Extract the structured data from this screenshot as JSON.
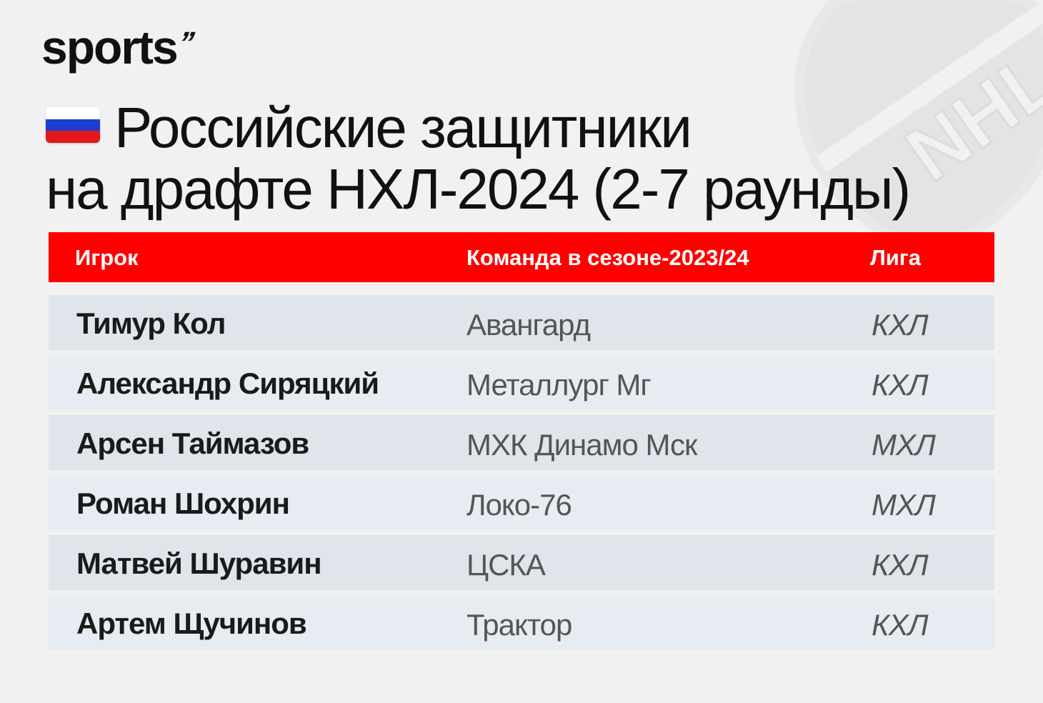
{
  "brand": {
    "logo_text": "sports",
    "logo_mark": "’’",
    "watermark": "NHL"
  },
  "title": {
    "line1": "Российские защитники",
    "line2": "на драфте НХЛ-2024 (2-7 раунды)",
    "flag_icon": "russia-flag-icon"
  },
  "colors": {
    "header_bg": "#ff0000",
    "row_odd": "#dfe5ea",
    "row_even": "#e6ecf1",
    "background": "#f1f1f1"
  },
  "table": {
    "headers": [
      "Игрок",
      "Команда в сезоне-2023/24",
      "Лига"
    ],
    "rows": [
      {
        "player": "Тимур Кол",
        "team": "Авангард",
        "league": "КХЛ"
      },
      {
        "player": "Александр Сиряцкий",
        "team": "Металлург Мг",
        "league": "КХЛ"
      },
      {
        "player": "Арсен Таймазов",
        "team": "МХК Динамо Мск",
        "league": "МХЛ"
      },
      {
        "player": "Роман Шохрин",
        "team": "Локо-76",
        "league": "МХЛ"
      },
      {
        "player": "Матвей Шуравин",
        "team": "ЦСКА",
        "league": "КХЛ"
      },
      {
        "player": "Артем Щучинов",
        "team": "Трактор",
        "league": "КХЛ"
      }
    ]
  }
}
